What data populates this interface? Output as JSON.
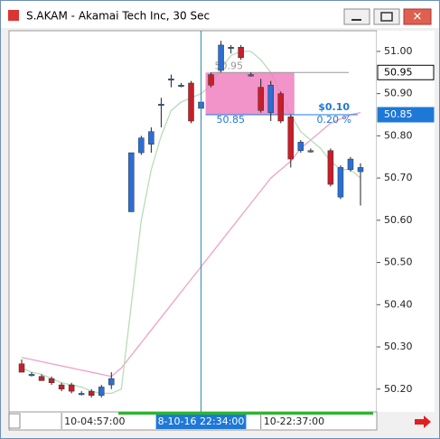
{
  "window_title": "S.AKAM - Akamai Tech Inc, 30 Sec",
  "chart_data": {
    "type": "candlestick",
    "categories": [
      null,
      null,
      null,
      null,
      "10-04:57:00",
      null,
      null,
      null,
      null,
      null,
      null,
      null,
      null,
      null,
      null,
      null,
      null,
      null,
      "8-10-16 22:34:00",
      null,
      null,
      null,
      null,
      null,
      "10-22:37:00",
      null,
      null,
      null,
      null,
      null,
      null,
      null,
      null,
      null,
      null
    ],
    "open": [
      50.26,
      50.235,
      50.23,
      50.225,
      50.21,
      50.21,
      50.19,
      50.195,
      50.185,
      50.21,
      null,
      50.62,
      50.76,
      50.78,
      50.875,
      50.935,
      50.92,
      50.925,
      50.865,
      50.945,
      50.955,
      51.01,
      51.01,
      50.945,
      50.915,
      50.855,
      50.9,
      50.845,
      50.765,
      50.765,
      null,
      50.765,
      50.655,
      50.72,
      50.715
    ],
    "high": [
      50.27,
      50.24,
      50.235,
      50.23,
      50.215,
      50.215,
      50.195,
      50.2,
      50.21,
      50.24,
      null,
      50.76,
      50.8,
      50.82,
      50.89,
      50.945,
      50.925,
      50.93,
      50.9,
      50.95,
      51.025,
      51.015,
      51.015,
      50.95,
      50.935,
      50.93,
      50.905,
      50.85,
      50.79,
      50.77,
      null,
      50.77,
      50.73,
      50.75,
      50.735
    ],
    "low": [
      50.24,
      50.23,
      50.22,
      50.21,
      50.195,
      50.19,
      50.185,
      50.18,
      50.18,
      50.2,
      null,
      50.62,
      50.755,
      50.76,
      50.82,
      50.915,
      50.915,
      50.83,
      50.84,
      50.915,
      50.95,
      50.995,
      50.98,
      50.94,
      50.855,
      50.835,
      50.83,
      50.725,
      50.76,
      50.76,
      null,
      50.68,
      50.65,
      50.715,
      50.635
    ],
    "close": [
      50.24,
      50.235,
      50.22,
      50.215,
      50.2,
      50.195,
      50.19,
      50.185,
      50.205,
      50.225,
      null,
      50.76,
      50.795,
      50.81,
      50.875,
      50.935,
      50.92,
      50.835,
      50.88,
      50.92,
      51.015,
      51.01,
      50.985,
      50.945,
      50.86,
      50.92,
      50.835,
      50.745,
      50.785,
      50.765,
      null,
      50.685,
      50.725,
      50.745,
      50.725
    ],
    "up_color": "#2a6fd6",
    "down_color": "#c81e2a",
    "lines": [
      {
        "color": "#f0a0c8",
        "values": [
          50.275,
          50.27,
          50.265,
          50.26,
          50.255,
          50.25,
          50.245,
          50.24,
          50.235,
          50.23,
          50.25,
          50.28,
          50.31,
          50.34,
          50.37,
          50.4,
          50.43,
          50.46,
          50.49,
          50.52,
          50.55,
          50.58,
          50.61,
          50.64,
          50.67,
          50.7,
          50.72,
          50.74,
          50.77,
          50.79,
          50.81,
          50.83,
          50.84,
          50.85,
          50.855
        ]
      },
      {
        "color": "#b8dcb8",
        "values": [
          50.25,
          50.24,
          50.235,
          50.225,
          50.215,
          50.21,
          50.205,
          50.195,
          50.19,
          50.19,
          50.2,
          50.4,
          50.6,
          50.72,
          50.8,
          50.86,
          50.88,
          50.89,
          50.9,
          50.92,
          50.96,
          50.99,
          51.0,
          51.0,
          50.98,
          50.95,
          50.9,
          50.85,
          50.81,
          50.79,
          50.77,
          50.74,
          50.72,
          50.72,
          50.7
        ]
      }
    ],
    "ylim": [
      50.146,
      51.049
    ],
    "yticks": [
      {
        "value": 50.2,
        "label": "50.20"
      },
      {
        "value": 50.3,
        "label": "50.30"
      },
      {
        "value": 50.4,
        "label": "50.40"
      },
      {
        "value": 50.5,
        "label": "50.50"
      },
      {
        "value": 50.6,
        "label": "50.60"
      },
      {
        "value": 50.7,
        "label": "50.70"
      },
      {
        "value": 50.8,
        "label": "50.80"
      },
      {
        "value": 50.9,
        "label": "50.90"
      },
      {
        "value": 51,
        "label": "51.00"
      }
    ],
    "price_markers": [
      {
        "value": 50.95,
        "label": "50.95",
        "color": "#ffffff"
      },
      {
        "value": 50.85,
        "label": "50.85",
        "color": "#1e78d8"
      }
    ],
    "cursor_index": 18,
    "measure": {
      "from": 50.95,
      "to": 50.85,
      "start": 19,
      "end": 27,
      "from_label": "50.95",
      "to_label": "50.85",
      "change_label": "$0.10",
      "percent_label": "0.20 %",
      "color": "#f080c0"
    }
  }
}
